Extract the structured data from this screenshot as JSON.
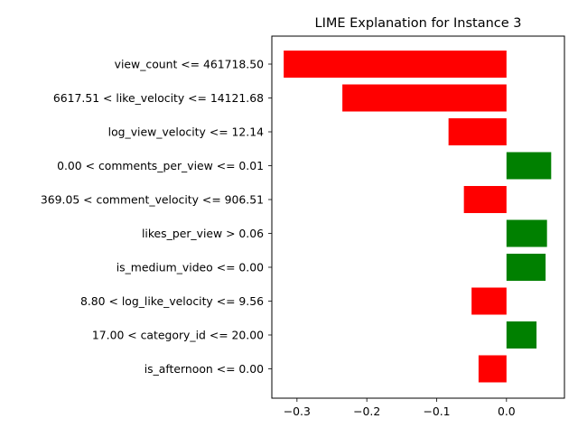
{
  "chart_data": {
    "type": "bar",
    "orientation": "horizontal",
    "title": "LIME Explanation for Instance 3",
    "xlabel": "",
    "ylabel": "",
    "xlim": [
      -0.336,
      0.083
    ],
    "xticks": [
      -0.3,
      -0.2,
      -0.1,
      0.0
    ],
    "xtick_labels": [
      "−0.3",
      "−0.2",
      "−0.1",
      "0.0"
    ],
    "grid": false,
    "legend": "none",
    "categories": [
      "view_count <= 461718.50",
      "6617.51 < like_velocity <= 14121.68",
      "log_view_velocity <= 12.14",
      "0.00 < comments_per_view <= 0.01",
      "369.05 < comment_velocity <= 906.51",
      "likes_per_view > 0.06",
      "is_medium_video <= 0.00",
      "8.80 < log_like_velocity <= 9.56",
      "17.00 < category_id <= 20.00",
      "is_afternoon <= 0.00"
    ],
    "values": [
      -0.319,
      -0.235,
      -0.083,
      0.064,
      -0.061,
      0.058,
      0.056,
      -0.05,
      0.043,
      -0.04
    ],
    "colors": {
      "positive": "#008000",
      "negative": "#ff0000"
    }
  }
}
